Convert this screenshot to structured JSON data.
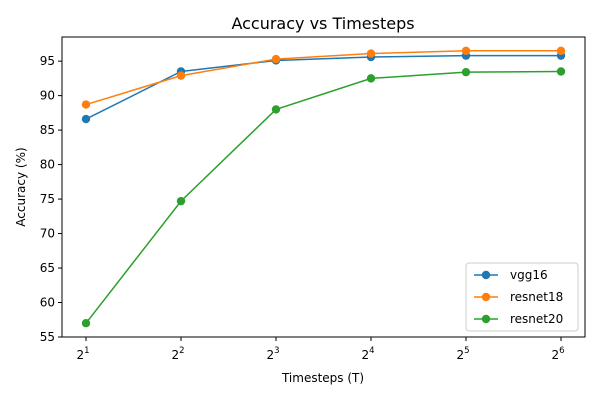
{
  "chart_data": {
    "type": "line",
    "title": "Accuracy vs Timesteps",
    "xlabel": "Timesteps (T)",
    "ylabel": "Accuracy (%)",
    "x_scale": "log2",
    "x": [
      2,
      4,
      8,
      16,
      32,
      64
    ],
    "x_tick_labels": [
      {
        "base": "2",
        "exp": "1"
      },
      {
        "base": "2",
        "exp": "2"
      },
      {
        "base": "2",
        "exp": "3"
      },
      {
        "base": "2",
        "exp": "4"
      },
      {
        "base": "2",
        "exp": "5"
      },
      {
        "base": "2",
        "exp": "6"
      }
    ],
    "ylim": [
      55,
      98.5
    ],
    "y_ticks": [
      55,
      60,
      65,
      70,
      75,
      80,
      85,
      90,
      95
    ],
    "grid": false,
    "legend_position": "lower-right",
    "series": [
      {
        "name": "vgg16",
        "color": "#1f77b4",
        "values": [
          86.6,
          93.5,
          95.1,
          95.6,
          95.8,
          95.8
        ]
      },
      {
        "name": "resnet18",
        "color": "#ff7f0e",
        "values": [
          88.7,
          92.9,
          95.3,
          96.1,
          96.5,
          96.5
        ]
      },
      {
        "name": "resnet20",
        "color": "#2ca02c",
        "values": [
          57.0,
          74.7,
          88.0,
          92.5,
          93.4,
          93.5
        ]
      }
    ]
  }
}
